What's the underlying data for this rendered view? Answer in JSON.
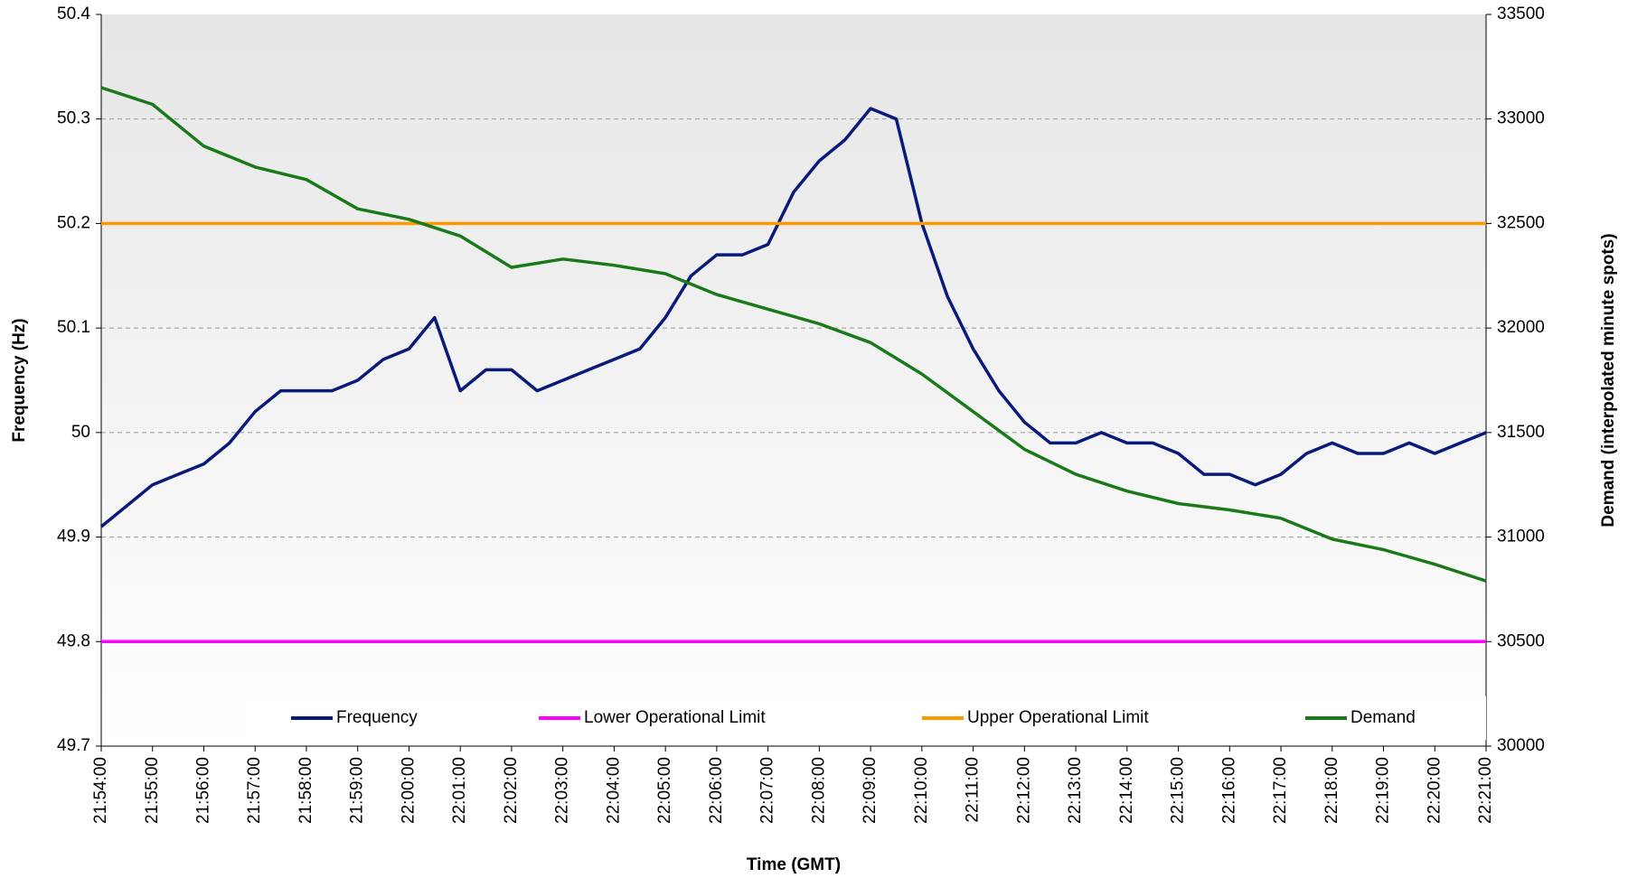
{
  "chart_data": {
    "type": "line",
    "x_label": "Time (GMT)",
    "y_label": "Frequency (Hz)",
    "y2_label": "Demand (interpolated minute spots)",
    "xlim": [
      "21:54:00",
      "22:21:00"
    ],
    "xticks": [
      "21:54:00",
      "21:55:00",
      "21:56:00",
      "21:57:00",
      "21:58:00",
      "21:59:00",
      "22:00:00",
      "22:01:00",
      "22:02:00",
      "22:03:00",
      "22:04:00",
      "22:05:00",
      "22:06:00",
      "22:07:00",
      "22:08:00",
      "22:09:00",
      "22:10:00",
      "22:11:00",
      "22:12:00",
      "22:13:00",
      "22:14:00",
      "22:15:00",
      "22:16:00",
      "22:17:00",
      "22:18:00",
      "22:19:00",
      "22:20:00",
      "22:21:00"
    ],
    "ylim": [
      49.7,
      50.4
    ],
    "yticks": [
      49.7,
      49.8,
      49.9,
      50,
      50.1,
      50.2,
      50.3,
      50.4
    ],
    "y2lim": [
      30000,
      33500
    ],
    "y2ticks": [
      30000,
      30500,
      31000,
      31500,
      32000,
      32500,
      33000,
      33500
    ],
    "grid": true,
    "legend": "bottom",
    "series": [
      {
        "name": "Frequency",
        "color": "#0a1a7a",
        "x": [
          "21:54:00",
          "21:54:30",
          "21:55:00",
          "21:55:30",
          "21:56:00",
          "21:56:30",
          "21:57:00",
          "21:57:30",
          "21:58:00",
          "21:58:30",
          "21:59:00",
          "21:59:30",
          "22:00:00",
          "22:00:30",
          "22:01:00",
          "22:01:30",
          "22:02:00",
          "22:02:30",
          "22:03:00",
          "22:03:30",
          "22:04:00",
          "22:04:30",
          "22:05:00",
          "22:05:30",
          "22:06:00",
          "22:06:30",
          "22:07:00",
          "22:07:30",
          "22:08:00",
          "22:08:30",
          "22:09:00",
          "22:09:30",
          "22:10:00",
          "22:10:30",
          "22:11:00",
          "22:11:30",
          "22:12:00",
          "22:12:30",
          "22:13:00",
          "22:13:30",
          "22:14:00",
          "22:14:30",
          "22:15:00",
          "22:15:30",
          "22:16:00",
          "22:16:30",
          "22:17:00",
          "22:17:30",
          "22:18:00",
          "22:18:30",
          "22:19:00",
          "22:19:30",
          "22:20:00",
          "22:20:30",
          "22:21:00"
        ],
        "values": [
          49.91,
          49.93,
          49.95,
          49.96,
          49.97,
          49.99,
          50.02,
          50.04,
          50.04,
          50.04,
          50.05,
          50.07,
          50.08,
          50.11,
          50.04,
          50.06,
          50.06,
          50.04,
          50.05,
          50.06,
          50.07,
          50.08,
          50.11,
          50.15,
          50.17,
          50.17,
          50.18,
          50.23,
          50.26,
          50.28,
          50.31,
          50.3,
          50.2,
          50.13,
          50.08,
          50.04,
          50.01,
          49.99,
          49.99,
          50,
          49.99,
          49.99,
          49.98,
          49.96,
          49.96,
          49.95,
          49.96,
          49.98,
          49.99,
          49.98,
          49.98,
          49.99,
          49.98,
          49.99,
          50
        ]
      },
      {
        "name": "Lower Operational Limit",
        "color": "#ff00ff",
        "x": [
          "21:54:00",
          "22:21:00"
        ],
        "values": [
          49.8,
          49.8
        ]
      },
      {
        "name": "Upper Operational Limit",
        "color": "#ff9900",
        "x": [
          "21:54:00",
          "22:21:00"
        ],
        "values": [
          50.2,
          50.2
        ]
      },
      {
        "name": "Demand",
        "color": "#1a7a1a",
        "axis": "y2",
        "x": [
          "21:54:00",
          "21:55:00",
          "21:56:00",
          "21:57:00",
          "21:58:00",
          "21:59:00",
          "22:00:00",
          "22:01:00",
          "22:02:00",
          "22:03:00",
          "22:04:00",
          "22:05:00",
          "22:06:00",
          "22:07:00",
          "22:08:00",
          "22:09:00",
          "22:10:00",
          "22:11:00",
          "22:12:00",
          "22:13:00",
          "22:14:00",
          "22:15:00",
          "22:16:00",
          "22:17:00",
          "22:18:00",
          "22:19:00",
          "22:20:00",
          "22:21:00"
        ],
        "values": [
          33150,
          33070,
          32870,
          32770,
          32710,
          32570,
          32520,
          32440,
          32290,
          32330,
          32300,
          32260,
          32160,
          32090,
          32020,
          31930,
          31780,
          31600,
          31420,
          31300,
          31220,
          31160,
          31130,
          31090,
          30990,
          30940,
          30870,
          30790
        ]
      }
    ]
  }
}
